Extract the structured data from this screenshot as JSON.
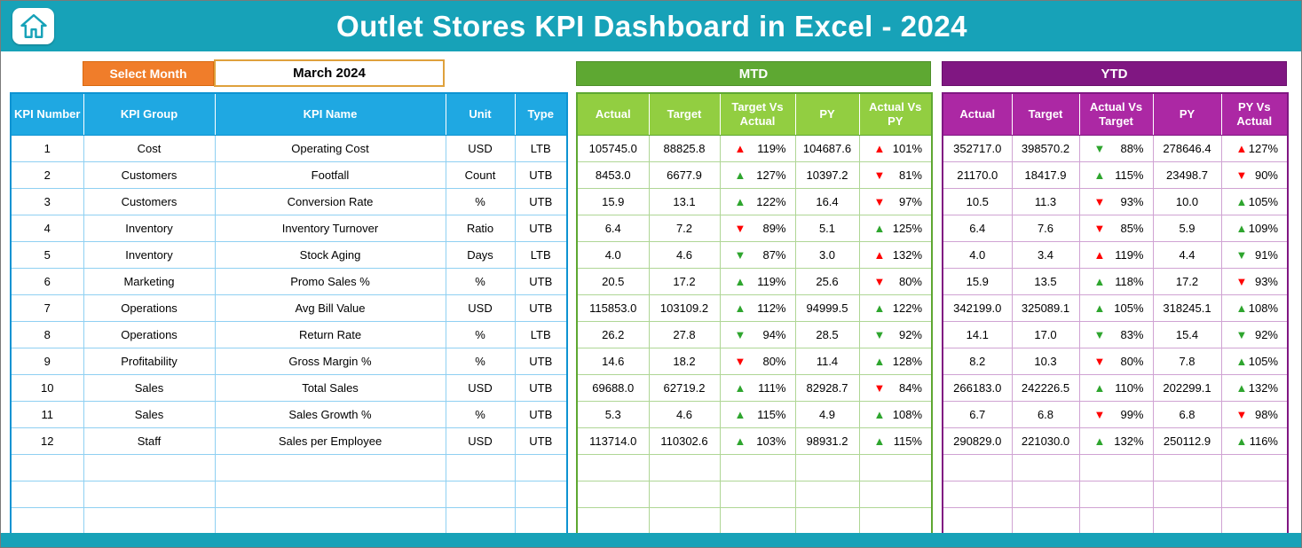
{
  "header": {
    "title": "Outlet Stores KPI Dashboard in Excel - 2024"
  },
  "controls": {
    "select_month_label": "Select Month",
    "selected_month": "March 2024"
  },
  "sections": {
    "mtd_label": "MTD",
    "ytd_label": "YTD"
  },
  "left_table": {
    "headers": [
      "KPI Number",
      "KPI Group",
      "KPI Name",
      "Unit",
      "Type"
    ]
  },
  "mtd": {
    "headers": [
      "Actual",
      "Target",
      "Target Vs Actual",
      "PY",
      "Actual Vs PY"
    ]
  },
  "ytd": {
    "headers": [
      "Actual",
      "Target",
      "Actual Vs Target",
      "PY",
      "PY Vs Actual"
    ]
  },
  "colors": {
    "topbar_teal": "#17a2b8",
    "select_month_orange": "#f07d2a",
    "left_header_blue": "#1fa8e2",
    "mtd_band_green": "#5ea832",
    "mtd_header_green": "#92ce41",
    "ytd_band_purple": "#801782",
    "ytd_header_magenta": "#ac28a4",
    "arrow_red": "#ff0000",
    "arrow_green": "#2ea52e"
  },
  "rows": [
    {
      "kpi_number": "1",
      "kpi_group": "Cost",
      "kpi_name": "Operating Cost",
      "unit": "USD",
      "type": "LTB",
      "mtd": {
        "actual": "105745.0",
        "target": "88825.8",
        "target_vs_actual": {
          "dir": "up",
          "color": "red",
          "value": "119%"
        },
        "py": "104687.6",
        "actual_vs_py": {
          "dir": "up",
          "color": "red",
          "value": "101%"
        }
      },
      "ytd": {
        "actual": "352717.0",
        "target": "398570.2",
        "actual_vs_target": {
          "dir": "down",
          "color": "green",
          "value": "88%"
        },
        "py": "278646.4",
        "py_vs_actual": {
          "dir": "up",
          "color": "red",
          "value": "127%"
        }
      }
    },
    {
      "kpi_number": "2",
      "kpi_group": "Customers",
      "kpi_name": "Footfall",
      "unit": "Count",
      "type": "UTB",
      "mtd": {
        "actual": "8453.0",
        "target": "6677.9",
        "target_vs_actual": {
          "dir": "up",
          "color": "green",
          "value": "127%"
        },
        "py": "10397.2",
        "actual_vs_py": {
          "dir": "down",
          "color": "red",
          "value": "81%"
        }
      },
      "ytd": {
        "actual": "21170.0",
        "target": "18417.9",
        "actual_vs_target": {
          "dir": "up",
          "color": "green",
          "value": "115%"
        },
        "py": "23498.7",
        "py_vs_actual": {
          "dir": "down",
          "color": "red",
          "value": "90%"
        }
      }
    },
    {
      "kpi_number": "3",
      "kpi_group": "Customers",
      "kpi_name": "Conversion Rate",
      "unit": "%",
      "type": "UTB",
      "mtd": {
        "actual": "15.9",
        "target": "13.1",
        "target_vs_actual": {
          "dir": "up",
          "color": "green",
          "value": "122%"
        },
        "py": "16.4",
        "actual_vs_py": {
          "dir": "down",
          "color": "red",
          "value": "97%"
        }
      },
      "ytd": {
        "actual": "10.5",
        "target": "11.3",
        "actual_vs_target": {
          "dir": "down",
          "color": "red",
          "value": "93%"
        },
        "py": "10.0",
        "py_vs_actual": {
          "dir": "up",
          "color": "green",
          "value": "105%"
        }
      }
    },
    {
      "kpi_number": "4",
      "kpi_group": "Inventory",
      "kpi_name": "Inventory Turnover",
      "unit": "Ratio",
      "type": "UTB",
      "mtd": {
        "actual": "6.4",
        "target": "7.2",
        "target_vs_actual": {
          "dir": "down",
          "color": "red",
          "value": "89%"
        },
        "py": "5.1",
        "actual_vs_py": {
          "dir": "up",
          "color": "green",
          "value": "125%"
        }
      },
      "ytd": {
        "actual": "6.4",
        "target": "7.6",
        "actual_vs_target": {
          "dir": "down",
          "color": "red",
          "value": "85%"
        },
        "py": "5.9",
        "py_vs_actual": {
          "dir": "up",
          "color": "green",
          "value": "109%"
        }
      }
    },
    {
      "kpi_number": "5",
      "kpi_group": "Inventory",
      "kpi_name": "Stock Aging",
      "unit": "Days",
      "type": "LTB",
      "mtd": {
        "actual": "4.0",
        "target": "4.6",
        "target_vs_actual": {
          "dir": "down",
          "color": "green",
          "value": "87%"
        },
        "py": "3.0",
        "actual_vs_py": {
          "dir": "up",
          "color": "red",
          "value": "132%"
        }
      },
      "ytd": {
        "actual": "4.0",
        "target": "3.4",
        "actual_vs_target": {
          "dir": "up",
          "color": "red",
          "value": "119%"
        },
        "py": "4.4",
        "py_vs_actual": {
          "dir": "down",
          "color": "green",
          "value": "91%"
        }
      }
    },
    {
      "kpi_number": "6",
      "kpi_group": "Marketing",
      "kpi_name": "Promo Sales %",
      "unit": "%",
      "type": "UTB",
      "mtd": {
        "actual": "20.5",
        "target": "17.2",
        "target_vs_actual": {
          "dir": "up",
          "color": "green",
          "value": "119%"
        },
        "py": "25.6",
        "actual_vs_py": {
          "dir": "down",
          "color": "red",
          "value": "80%"
        }
      },
      "ytd": {
        "actual": "15.9",
        "target": "13.5",
        "actual_vs_target": {
          "dir": "up",
          "color": "green",
          "value": "118%"
        },
        "py": "17.2",
        "py_vs_actual": {
          "dir": "down",
          "color": "red",
          "value": "93%"
        }
      }
    },
    {
      "kpi_number": "7",
      "kpi_group": "Operations",
      "kpi_name": "Avg Bill Value",
      "unit": "USD",
      "type": "UTB",
      "mtd": {
        "actual": "115853.0",
        "target": "103109.2",
        "target_vs_actual": {
          "dir": "up",
          "color": "green",
          "value": "112%"
        },
        "py": "94999.5",
        "actual_vs_py": {
          "dir": "up",
          "color": "green",
          "value": "122%"
        }
      },
      "ytd": {
        "actual": "342199.0",
        "target": "325089.1",
        "actual_vs_target": {
          "dir": "up",
          "color": "green",
          "value": "105%"
        },
        "py": "318245.1",
        "py_vs_actual": {
          "dir": "up",
          "color": "green",
          "value": "108%"
        }
      }
    },
    {
      "kpi_number": "8",
      "kpi_group": "Operations",
      "kpi_name": "Return Rate",
      "unit": "%",
      "type": "LTB",
      "mtd": {
        "actual": "26.2",
        "target": "27.8",
        "target_vs_actual": {
          "dir": "down",
          "color": "green",
          "value": "94%"
        },
        "py": "28.5",
        "actual_vs_py": {
          "dir": "down",
          "color": "green",
          "value": "92%"
        }
      },
      "ytd": {
        "actual": "14.1",
        "target": "17.0",
        "actual_vs_target": {
          "dir": "down",
          "color": "green",
          "value": "83%"
        },
        "py": "15.4",
        "py_vs_actual": {
          "dir": "down",
          "color": "green",
          "value": "92%"
        }
      }
    },
    {
      "kpi_number": "9",
      "kpi_group": "Profitability",
      "kpi_name": "Gross Margin %",
      "unit": "%",
      "type": "UTB",
      "mtd": {
        "actual": "14.6",
        "target": "18.2",
        "target_vs_actual": {
          "dir": "down",
          "color": "red",
          "value": "80%"
        },
        "py": "11.4",
        "actual_vs_py": {
          "dir": "up",
          "color": "green",
          "value": "128%"
        }
      },
      "ytd": {
        "actual": "8.2",
        "target": "10.3",
        "actual_vs_target": {
          "dir": "down",
          "color": "red",
          "value": "80%"
        },
        "py": "7.8",
        "py_vs_actual": {
          "dir": "up",
          "color": "green",
          "value": "105%"
        }
      }
    },
    {
      "kpi_number": "10",
      "kpi_group": "Sales",
      "kpi_name": "Total Sales",
      "unit": "USD",
      "type": "UTB",
      "mtd": {
        "actual": "69688.0",
        "target": "62719.2",
        "target_vs_actual": {
          "dir": "up",
          "color": "green",
          "value": "111%"
        },
        "py": "82928.7",
        "actual_vs_py": {
          "dir": "down",
          "color": "red",
          "value": "84%"
        }
      },
      "ytd": {
        "actual": "266183.0",
        "target": "242226.5",
        "actual_vs_target": {
          "dir": "up",
          "color": "green",
          "value": "110%"
        },
        "py": "202299.1",
        "py_vs_actual": {
          "dir": "up",
          "color": "green",
          "value": "132%"
        }
      }
    },
    {
      "kpi_number": "11",
      "kpi_group": "Sales",
      "kpi_name": "Sales Growth %",
      "unit": "%",
      "type": "UTB",
      "mtd": {
        "actual": "5.3",
        "target": "4.6",
        "target_vs_actual": {
          "dir": "up",
          "color": "green",
          "value": "115%"
        },
        "py": "4.9",
        "actual_vs_py": {
          "dir": "up",
          "color": "green",
          "value": "108%"
        }
      },
      "ytd": {
        "actual": "6.7",
        "target": "6.8",
        "actual_vs_target": {
          "dir": "down",
          "color": "red",
          "value": "99%"
        },
        "py": "6.8",
        "py_vs_actual": {
          "dir": "down",
          "color": "red",
          "value": "98%"
        }
      }
    },
    {
      "kpi_number": "12",
      "kpi_group": "Staff",
      "kpi_name": "Sales per Employee",
      "unit": "USD",
      "type": "UTB",
      "mtd": {
        "actual": "113714.0",
        "target": "110302.6",
        "target_vs_actual": {
          "dir": "up",
          "color": "green",
          "value": "103%"
        },
        "py": "98931.2",
        "actual_vs_py": {
          "dir": "up",
          "color": "green",
          "value": "115%"
        }
      },
      "ytd": {
        "actual": "290829.0",
        "target": "221030.0",
        "actual_vs_target": {
          "dir": "up",
          "color": "green",
          "value": "132%"
        },
        "py": "250112.9",
        "py_vs_actual": {
          "dir": "up",
          "color": "green",
          "value": "116%"
        }
      }
    }
  ]
}
